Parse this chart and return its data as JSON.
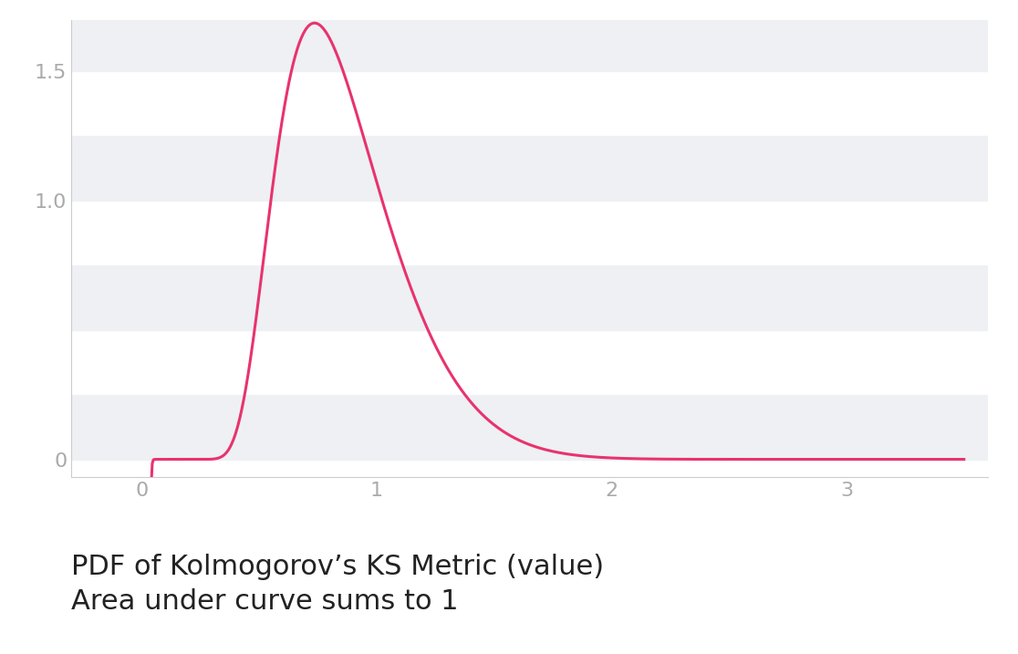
{
  "title_line1": "PDF of Kolmogorov’s KS Metric (value)",
  "title_line2": "Area under curve sums to 1",
  "line_color": "#e8336d",
  "line_width": 2.2,
  "background_color": "#ffffff",
  "band_color": "#eef0f4",
  "xlim": [
    -0.3,
    3.6
  ],
  "ylim": [
    -0.07,
    1.7
  ],
  "xticks": [
    0,
    1,
    2,
    3
  ],
  "yticks": [
    0,
    1.0,
    1.5
  ],
  "ytick_labels": [
    "0",
    "1.0",
    "1.5"
  ],
  "title_fontsize": 22,
  "tick_fontsize": 16,
  "tick_color": "#aaaaaa",
  "spine_color": "#cccccc",
  "rayleigh_scale": 0.7
}
